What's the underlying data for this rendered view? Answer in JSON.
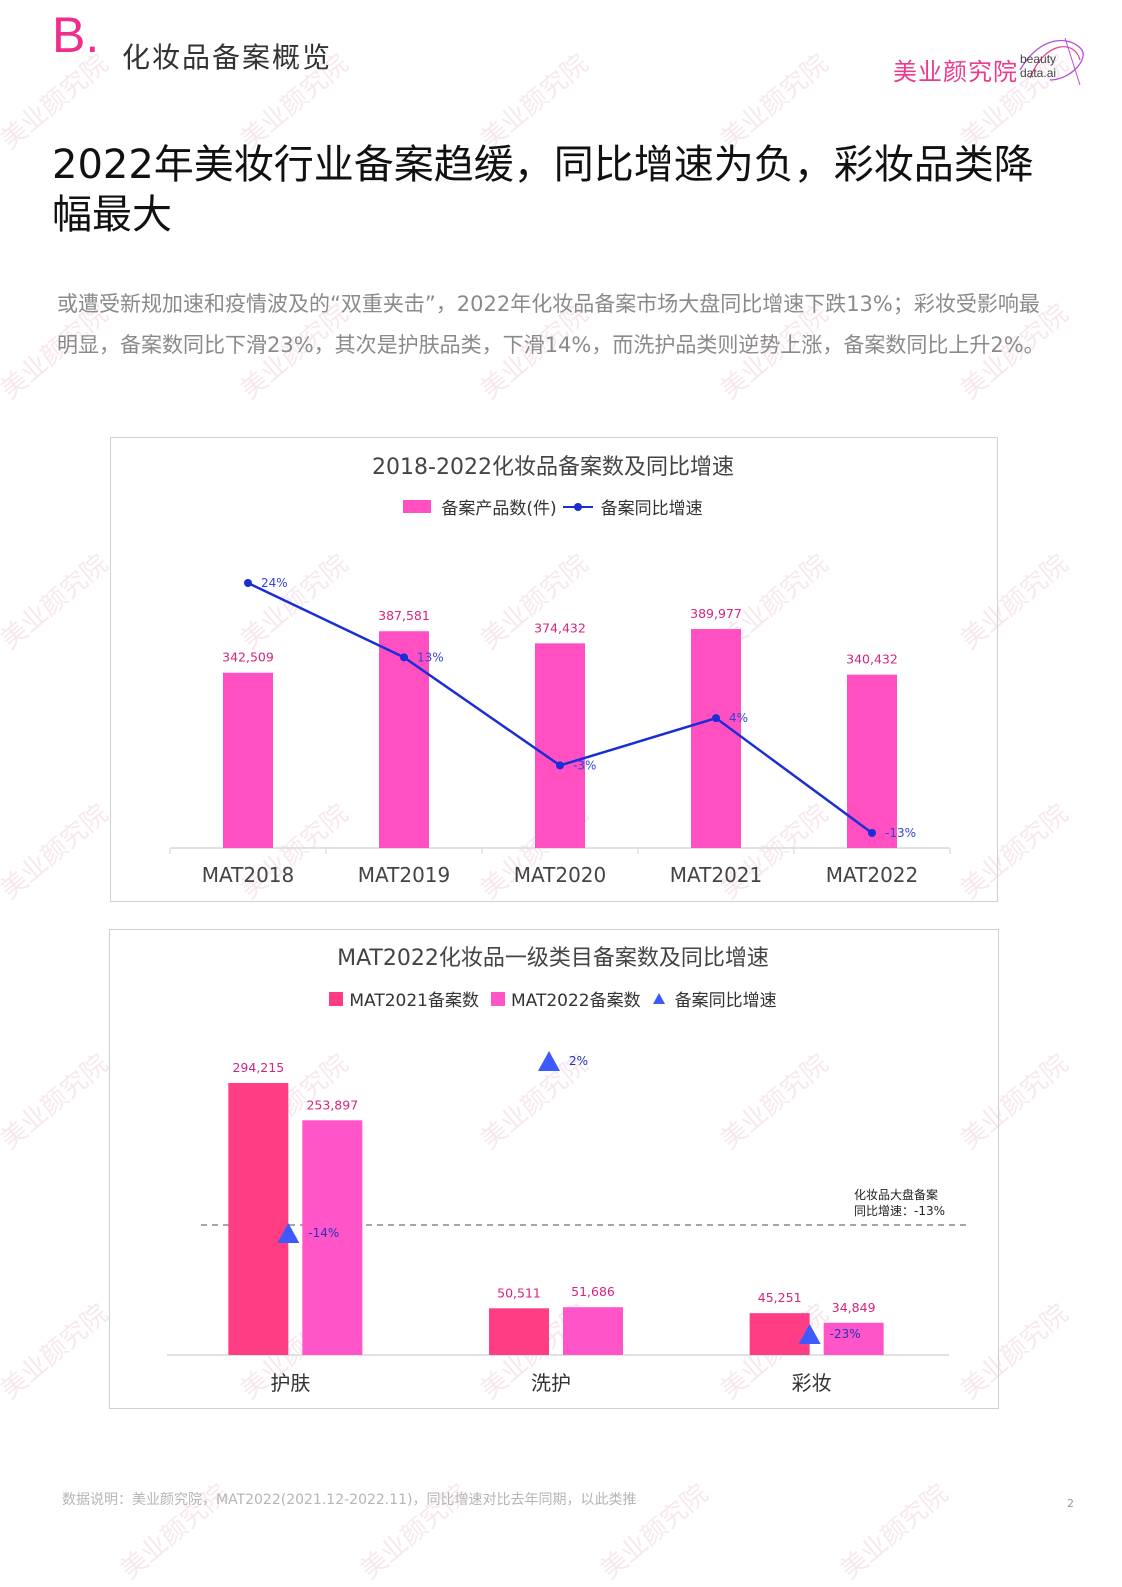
{
  "header": {
    "section_letter": "B.",
    "section_title": "化妆品备案概览",
    "logo_cn": "美业颜究院",
    "logo_en_line1": "beauty",
    "logo_en_line2": "data.ai"
  },
  "headline": "2022年美妆行业备案趋缓，同比增速为负，彩妆品类降幅最大",
  "body_text": "或遭受新规加速和疫情波及的“双重夹击”，2022年化妆品备案市场大盘同比增速下跌13%；彩妆受影响最明显，备案数同比下滑23%，其次是护肤品类，下滑14%，而洗护品类则逆势上涨，备案数同比上升2%。",
  "chart_data": [
    {
      "type": "bar",
      "title": "2018-2022化妆品备案数及同比增速",
      "legend": [
        "备案产品数(件)",
        "备案同比增速"
      ],
      "legend_position": "top",
      "categories": [
        "MAT2018",
        "MAT2019",
        "MAT2020",
        "MAT2021",
        "MAT2022"
      ],
      "series": [
        {
          "name": "备案产品数(件)",
          "type": "bar",
          "color": "#ff4fc0",
          "values": [
            342509,
            387581,
            374432,
            389977,
            340432
          ],
          "labels": [
            "342,509",
            "387,581",
            "374,432",
            "389,977",
            "340,432"
          ]
        },
        {
          "name": "备案同比增速",
          "type": "line",
          "color": "#1a2ed6",
          "values": [
            24,
            13,
            -3,
            4,
            -13
          ],
          "labels": [
            "24%",
            "13%",
            "-3%",
            "4%",
            "-13%"
          ]
        }
      ],
      "grid": false
    },
    {
      "type": "bar",
      "title": "MAT2022化妆品一级类目备案数及同比增速",
      "legend": [
        "MAT2021备案数",
        "MAT2022备案数",
        "备案同比增速"
      ],
      "legend_position": "top",
      "categories": [
        "护肤",
        "洗护",
        "彩妆"
      ],
      "series": [
        {
          "name": "MAT2021备案数",
          "type": "bar",
          "color": "#ff3d84",
          "values": [
            294215,
            50511,
            45251
          ],
          "labels": [
            "294,215",
            "50,511",
            "45,251"
          ]
        },
        {
          "name": "MAT2022备案数",
          "type": "bar",
          "color": "#ff55c8",
          "values": [
            253897,
            51686,
            34849
          ],
          "labels": [
            "253,897",
            "51,686",
            "34,849"
          ]
        },
        {
          "name": "备案同比增速",
          "type": "scatter",
          "marker": "triangle",
          "color": "#3d5afe",
          "values": [
            -14,
            2,
            -23
          ],
          "labels": [
            "-14%",
            "2%",
            "-23%"
          ]
        }
      ],
      "reference_line": {
        "value": -13,
        "label_line1": "化妆品大盘备案",
        "label_line2": "同比增速：-13%"
      },
      "grid": false
    }
  ],
  "footnote": "数据说明：美业颜究院，MAT2022(2021.12-2022.11)，同比增速对比去年同期，以此类推",
  "page_number": "2"
}
